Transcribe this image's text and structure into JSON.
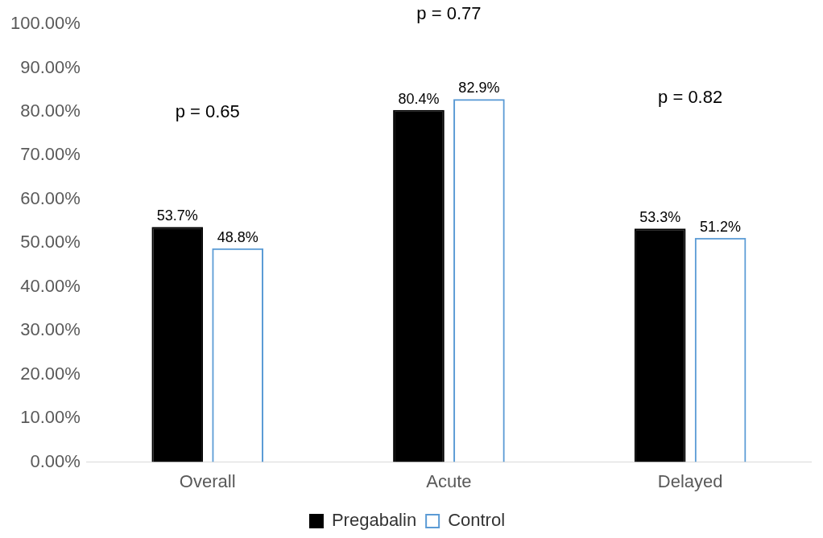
{
  "chart_data": {
    "type": "bar",
    "categories": [
      "Overall",
      "Acute",
      "Delayed"
    ],
    "series": [
      {
        "name": "Pregabalin",
        "color": "#000000",
        "values": [
          53.7,
          80.4,
          53.3
        ],
        "value_labels": [
          "53.7%",
          "80.4%",
          "53.3%"
        ]
      },
      {
        "name": "Control",
        "color": "#5b9bd5",
        "values": [
          48.8,
          82.9,
          51.2
        ],
        "value_labels": [
          "48.8%",
          "82.9%",
          "51.2%"
        ]
      }
    ],
    "ylim": [
      0,
      100
    ],
    "yticks": [
      {
        "value": 0,
        "label": "0.00%"
      },
      {
        "value": 10,
        "label": "10.00%"
      },
      {
        "value": 20,
        "label": "20.00%"
      },
      {
        "value": 30,
        "label": "30.00%"
      },
      {
        "value": 40,
        "label": "40.00%"
      },
      {
        "value": 50,
        "label": "50.00%"
      },
      {
        "value": 60,
        "label": "60.00%"
      },
      {
        "value": 70,
        "label": "70.00%"
      },
      {
        "value": 80,
        "label": "80.00%"
      },
      {
        "value": 90,
        "label": "90.00%"
      },
      {
        "value": 100,
        "label": "100.00%"
      }
    ],
    "annotations": [
      "p = 0.65",
      "p = 0.77",
      "p = 0.82"
    ],
    "grid": false,
    "legend": "bottom"
  }
}
